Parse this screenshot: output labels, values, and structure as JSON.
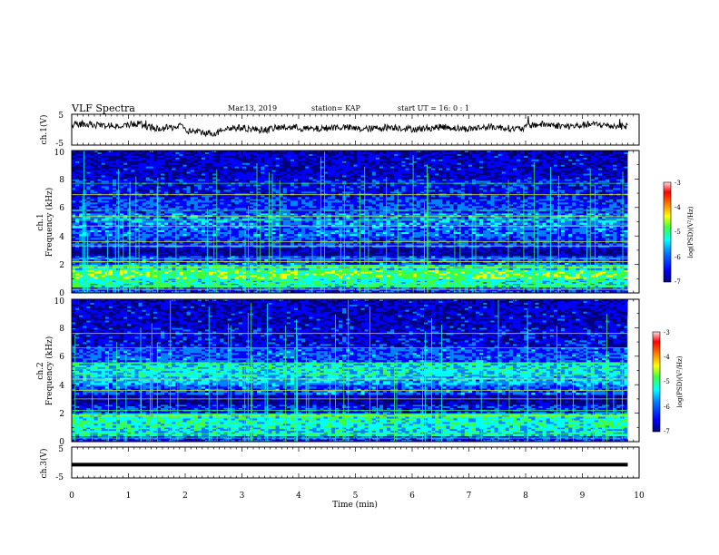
{
  "header": {
    "title": "VLF Spectra",
    "date": "Mar.13, 2019",
    "station": "station= KAP",
    "start_ut": "start  UT =   16: 0  : 1"
  },
  "chart_data": [
    {
      "type": "line",
      "name": "ch1-waveform",
      "ylabel": "ch.1(V)",
      "yticks": [
        "5",
        "-5"
      ],
      "ylim": [
        -5,
        5
      ],
      "xlim": [
        0,
        10
      ],
      "x_end": 9.8,
      "baseline": 1.2,
      "fluctuation": 2.2,
      "segments": [
        {
          "x": [
            0,
            1.3
          ],
          "level": 1.5
        },
        {
          "x": [
            1.3,
            2.0
          ],
          "level": 0.8
        },
        {
          "x": [
            2.0,
            2.6
          ],
          "level": -0.8
        },
        {
          "x": [
            2.6,
            3.5
          ],
          "level": 0.3
        },
        {
          "x": [
            3.5,
            6.5
          ],
          "level": 0.5
        },
        {
          "x": [
            6.5,
            8.0
          ],
          "level": 0.6
        },
        {
          "x": [
            8.0,
            9.8
          ],
          "level": 1.4
        }
      ]
    },
    {
      "type": "heatmap",
      "name": "ch1-spectrogram",
      "ylabel": "ch.1\nFrequency (kHz)",
      "ylabel_line1": "ch.1",
      "ylabel_line2": "Frequency (kHz)",
      "yticks": [
        "0",
        "2",
        "4",
        "6",
        "8",
        "10"
      ],
      "ylim_khz": [
        0,
        10
      ],
      "xlim_min": [
        0,
        9.8
      ],
      "background_log_psd": [
        {
          "f": [
            0,
            0.4
          ],
          "v": -6.3
        },
        {
          "f": [
            0.4,
            1.0
          ],
          "v": -5.4
        },
        {
          "f": [
            1.0,
            1.6
          ],
          "v": -5.0
        },
        {
          "f": [
            1.6,
            2.0
          ],
          "v": -5.5
        },
        {
          "f": [
            2.0,
            2.6
          ],
          "v": -6.2
        },
        {
          "f": [
            2.6,
            3.2
          ],
          "v": -6.9
        },
        {
          "f": [
            3.2,
            4.0
          ],
          "v": -6.3
        },
        {
          "f": [
            4.0,
            4.8
          ],
          "v": -6.1
        },
        {
          "f": [
            4.8,
            5.6
          ],
          "v": -6.0
        },
        {
          "f": [
            5.6,
            6.6
          ],
          "v": -6.3
        },
        {
          "f": [
            6.6,
            8.0
          ],
          "v": -6.5
        },
        {
          "f": [
            8.0,
            10.0
          ],
          "v": -6.7
        }
      ],
      "narrowband_lines_khz": [
        0.25,
        0.55,
        0.85,
        1.8,
        2.2,
        2.4,
        3.3,
        3.6,
        4.7,
        5.1,
        5.4,
        5.8,
        6.9,
        7.7
      ],
      "impulse_count": 55,
      "colorbar": {
        "label": "log(PSD)(V²/Hz)",
        "range": [
          -7,
          -3
        ],
        "ticks": [
          "-3",
          "-4",
          "-5",
          "-6",
          "-7"
        ]
      }
    },
    {
      "type": "heatmap",
      "name": "ch2-spectrogram",
      "ylabel": "ch.2\nFrequency (kHz)",
      "ylabel_line1": "ch.2",
      "ylabel_line2": "Frequency (kHz)",
      "yticks": [
        "0",
        "2",
        "4",
        "6",
        "8",
        "10"
      ],
      "ylim_khz": [
        0,
        10
      ],
      "xlim_min": [
        0,
        9.8
      ],
      "background_log_psd": [
        {
          "f": [
            0,
            0.4
          ],
          "v": -6.3
        },
        {
          "f": [
            0.4,
            1.0
          ],
          "v": -5.6
        },
        {
          "f": [
            1.0,
            2.0
          ],
          "v": -5.4
        },
        {
          "f": [
            2.0,
            2.6
          ],
          "v": -6.4
        },
        {
          "f": [
            2.6,
            3.3
          ],
          "v": -6.9
        },
        {
          "f": [
            3.3,
            4.0
          ],
          "v": -6.2
        },
        {
          "f": [
            4.0,
            4.6
          ],
          "v": -5.8
        },
        {
          "f": [
            4.6,
            5.6
          ],
          "v": -5.6
        },
        {
          "f": [
            5.6,
            6.6
          ],
          "v": -6.2
        },
        {
          "f": [
            6.6,
            8.0
          ],
          "v": -6.6
        },
        {
          "f": [
            8.0,
            10.0
          ],
          "v": -6.7
        }
      ],
      "narrowband_lines_khz": [
        0.25,
        0.55,
        1.8,
        2.2,
        3.0,
        3.6,
        4.4,
        4.7,
        5.1,
        5.5,
        6.6,
        7.6
      ],
      "impulse_count": 55,
      "colorbar": {
        "label": "log(PSD)(V²/Hz)",
        "range": [
          -7,
          -3
        ],
        "ticks": [
          "-3",
          "-4",
          "-5",
          "-6",
          "-7"
        ]
      }
    },
    {
      "type": "line",
      "name": "ch3-waveform",
      "ylabel": "ch.3(V)",
      "yticks": [
        "5",
        "-5"
      ],
      "ylim": [
        -5,
        5
      ],
      "xlim": [
        0,
        10
      ],
      "x_end": 9.8,
      "level": -0.7
    }
  ],
  "x_axis": {
    "label": "Time (min)",
    "ticks": [
      "0",
      "1",
      "2",
      "3",
      "4",
      "5",
      "6",
      "7",
      "8",
      "9",
      "10"
    ],
    "range": [
      0,
      10
    ]
  },
  "colors": {
    "scale": [
      "#00007a",
      "#0000ff",
      "#0080ff",
      "#00ffff",
      "#40ff40",
      "#ffff00",
      "#ff8000",
      "#ff0000",
      "#ffdede"
    ]
  }
}
